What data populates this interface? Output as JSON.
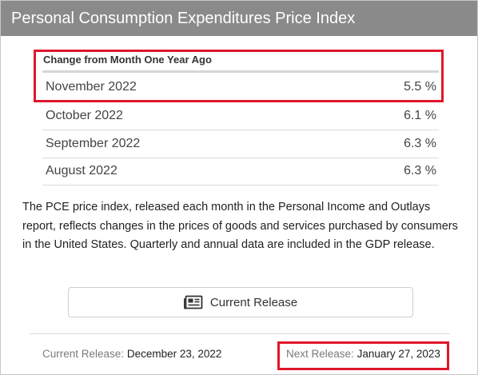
{
  "header": {
    "title": "Personal Consumption Expenditures Price Index"
  },
  "table": {
    "title": "Change from Month One Year Ago",
    "rows": [
      {
        "period": "November 2022",
        "value": "5.5 %"
      },
      {
        "period": "October 2022",
        "value": "6.1 %"
      },
      {
        "period": "September 2022",
        "value": "6.3 %"
      },
      {
        "period": "August 2022",
        "value": "6.3 %"
      }
    ]
  },
  "description": "The PCE price index, released each month in the Personal Income and Outlays report, reflects changes in the prices of goods and services purchased by consumers in the United States. Quarterly and annual data are included in the GDP release.",
  "button": {
    "label": "Current Release",
    "icon": "newspaper-icon"
  },
  "footer": {
    "current": {
      "label": "Current Release:",
      "value": "December 23, 2022"
    },
    "next": {
      "label": "Next Release:",
      "value": "January 27, 2023"
    }
  },
  "colors": {
    "header_bg": "#8a8a8a",
    "highlight": "#e0162b"
  }
}
